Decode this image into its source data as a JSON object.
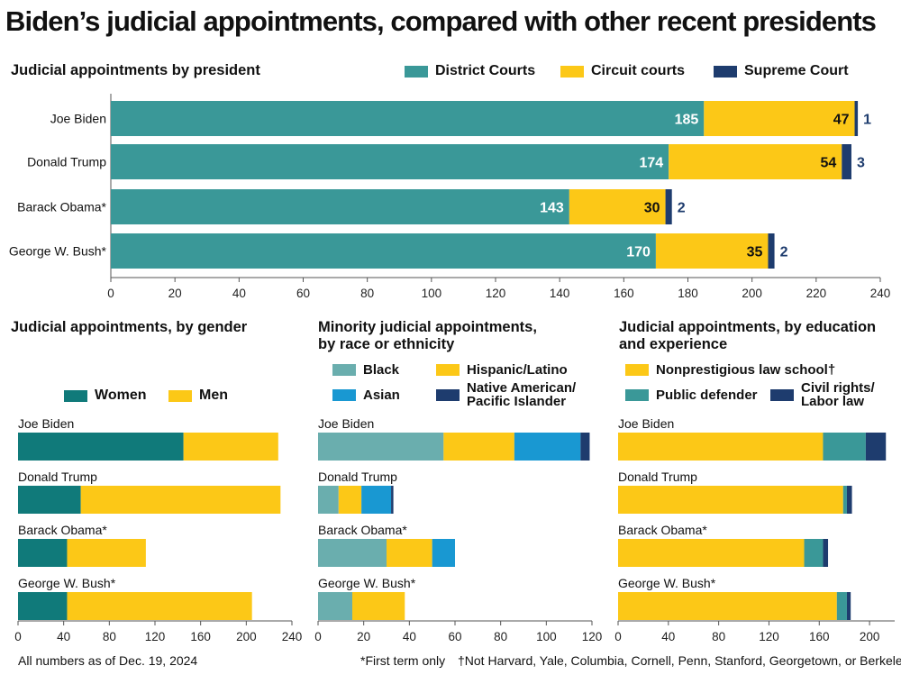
{
  "title": "Biden’s judicial appointments, compared with other recent presidents",
  "colors": {
    "teal": "#3a9898",
    "dark_teal": "#107a7a",
    "light_teal": "#6aaeae",
    "yellow": "#fcc817",
    "navy": "#1e3c6e",
    "blue": "#1998d2",
    "axis": "#555555"
  },
  "chart_data": [
    {
      "id": "by-president",
      "type": "bar",
      "orientation": "horizontal",
      "stacked": true,
      "title": "Judicial appointments by president",
      "categories": [
        "Joe Biden",
        "Donald Trump",
        "Barack Obama*",
        "George W. Bush*"
      ],
      "series": [
        {
          "name": "District Courts",
          "color": "#3a9898",
          "values": [
            185,
            174,
            143,
            170
          ]
        },
        {
          "name": "Circuit courts",
          "color": "#fcc817",
          "values": [
            47,
            54,
            30,
            35
          ]
        },
        {
          "name": "Supreme Court",
          "color": "#1e3c6e",
          "values": [
            1,
            3,
            2,
            2
          ]
        }
      ],
      "xlim": [
        0,
        240
      ],
      "ticks": [
        0,
        20,
        40,
        60,
        80,
        100,
        120,
        140,
        160,
        180,
        200,
        220,
        240
      ],
      "xlabel": "",
      "ylabel": ""
    },
    {
      "id": "by-gender",
      "type": "bar",
      "orientation": "horizontal",
      "stacked": true,
      "title": "Judicial appointments, by gender",
      "categories": [
        "Joe Biden",
        "Donald Trump",
        "Barack Obama*",
        "George W. Bush*"
      ],
      "series": [
        {
          "name": "Women",
          "color": "#107a7a",
          "values": [
            145,
            55,
            43,
            43
          ]
        },
        {
          "name": "Men",
          "color": "#fcc817",
          "values": [
            83,
            175,
            69,
            162
          ]
        }
      ],
      "xlim": [
        0,
        240
      ],
      "ticks": [
        0,
        40,
        80,
        120,
        160,
        200,
        240
      ]
    },
    {
      "id": "by-race",
      "type": "bar",
      "orientation": "horizontal",
      "stacked": true,
      "title": "Minority judicial appointments, by race or ethnicity",
      "categories": [
        "Joe Biden",
        "Donald Trump",
        "Barack Obama*",
        "George W. Bush*"
      ],
      "series": [
        {
          "name": "Black",
          "color": "#6aaeae",
          "values": [
            55,
            9,
            30,
            15
          ]
        },
        {
          "name": "Hispanic/Latino",
          "color": "#fcc817",
          "values": [
            31,
            10,
            20,
            23
          ]
        },
        {
          "name": "Asian",
          "color": "#1998d2",
          "values": [
            29,
            13,
            10,
            0
          ]
        },
        {
          "name": "Native American/ Pacific Islander",
          "color": "#1e3c6e",
          "values": [
            4,
            1,
            0,
            0
          ]
        }
      ],
      "xlim": [
        0,
        120
      ],
      "ticks": [
        0,
        20,
        40,
        60,
        80,
        100,
        120
      ]
    },
    {
      "id": "by-education",
      "type": "bar",
      "orientation": "horizontal",
      "stacked": true,
      "title": "Judicial appointments, by education and experience",
      "categories": [
        "Joe Biden",
        "Donald Trump",
        "Barack Obama*",
        "George W. Bush*"
      ],
      "series": [
        {
          "name": "Nonprestigious law school†",
          "color": "#fcc817",
          "values": [
            163,
            179,
            148,
            174
          ]
        },
        {
          "name": "Public defender",
          "color": "#3a9898",
          "values": [
            34,
            3,
            15,
            8
          ]
        },
        {
          "name": "Civil rights/ Labor law",
          "color": "#1e3c6e",
          "values": [
            16,
            4,
            4,
            3
          ]
        }
      ],
      "xlim": [
        0,
        220
      ],
      "ticks": [
        0,
        40,
        80,
        120,
        160,
        200
      ]
    }
  ],
  "legend_text": {
    "gender": [
      "Women",
      "Men"
    ],
    "race_left": [
      "Black",
      "Asian"
    ],
    "race_right_1": "Hispanic/Latino",
    "race_right_2a": "Native American/",
    "race_right_2b": "Pacific Islander",
    "edu_1": "Nonprestigious law school†",
    "edu_2": "Public defender",
    "edu_3a": "Civil rights/",
    "edu_3b": "Labor law"
  },
  "subtitles": {
    "race_1": "Minority judicial appointments,",
    "race_2": "by race or ethnicity",
    "edu_1": "Judicial appointments, by education",
    "edu_2": "and experience"
  },
  "footnotes": {
    "date": "All numbers as of Dec. 19, 2024",
    "first_term": "*First term only",
    "law_school": "†Not Harvard, Yale, Columbia, Cornell, Penn, Stanford, Georgetown, or Berkeley"
  }
}
